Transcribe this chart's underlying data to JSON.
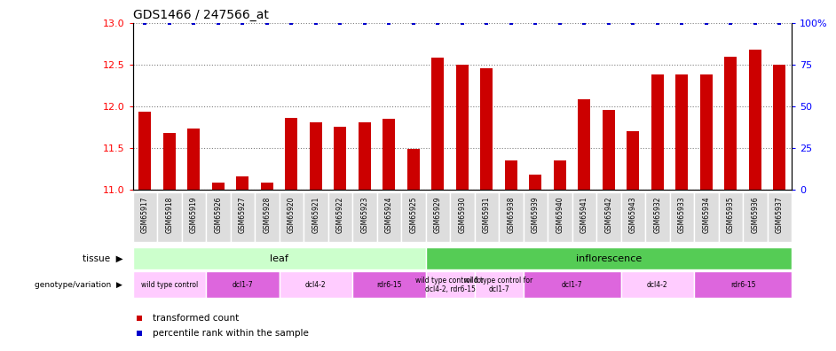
{
  "title": "GDS1466 / 247566_at",
  "samples": [
    "GSM65917",
    "GSM65918",
    "GSM65919",
    "GSM65926",
    "GSM65927",
    "GSM65928",
    "GSM65920",
    "GSM65921",
    "GSM65922",
    "GSM65923",
    "GSM65924",
    "GSM65925",
    "GSM65929",
    "GSM65930",
    "GSM65931",
    "GSM65938",
    "GSM65939",
    "GSM65940",
    "GSM65941",
    "GSM65942",
    "GSM65943",
    "GSM65932",
    "GSM65933",
    "GSM65934",
    "GSM65935",
    "GSM65936",
    "GSM65937"
  ],
  "bar_values": [
    11.93,
    11.68,
    11.73,
    11.08,
    11.15,
    11.08,
    11.86,
    11.8,
    11.75,
    11.8,
    11.85,
    11.48,
    12.58,
    12.5,
    12.46,
    11.35,
    11.18,
    11.35,
    12.08,
    11.95,
    11.7,
    12.38,
    12.38,
    12.38,
    12.6,
    12.68,
    12.5
  ],
  "percentile_values": [
    100,
    100,
    100,
    100,
    100,
    100,
    100,
    100,
    100,
    100,
    100,
    100,
    100,
    100,
    100,
    100,
    100,
    100,
    100,
    100,
    100,
    100,
    100,
    100,
    100,
    100,
    100
  ],
  "ylim": [
    11.0,
    13.0
  ],
  "y2lim": [
    0,
    100
  ],
  "yticks": [
    11.0,
    11.5,
    12.0,
    12.5,
    13.0
  ],
  "y2ticks": [
    0,
    25,
    50,
    75,
    100
  ],
  "bar_color": "#cc0000",
  "percentile_color": "#0000cc",
  "tissue_groups": [
    {
      "label": "leaf",
      "start": 0,
      "end": 11,
      "color": "#ccffcc"
    },
    {
      "label": "inflorescence",
      "start": 12,
      "end": 26,
      "color": "#55cc55"
    }
  ],
  "genotype_groups": [
    {
      "label": "wild type control",
      "start": 0,
      "end": 2,
      "color": "#ffccff"
    },
    {
      "label": "dcl1-7",
      "start": 3,
      "end": 5,
      "color": "#dd66dd"
    },
    {
      "label": "dcl4-2",
      "start": 6,
      "end": 8,
      "color": "#ffccff"
    },
    {
      "label": "rdr6-15",
      "start": 9,
      "end": 11,
      "color": "#dd66dd"
    },
    {
      "label": "wild type control for\ndcl4-2, rdr6-15",
      "start": 12,
      "end": 13,
      "color": "#ffccff"
    },
    {
      "label": "wild type control for\ndcl1-7",
      "start": 14,
      "end": 15,
      "color": "#ffccff"
    },
    {
      "label": "dcl1-7",
      "start": 16,
      "end": 19,
      "color": "#dd66dd"
    },
    {
      "label": "dcl4-2",
      "start": 20,
      "end": 22,
      "color": "#ffccff"
    },
    {
      "label": "rdr6-15",
      "start": 23,
      "end": 26,
      "color": "#dd66dd"
    }
  ],
  "legend_items": [
    {
      "label": "transformed count",
      "color": "#cc0000"
    },
    {
      "label": "percentile rank within the sample",
      "color": "#0000cc"
    }
  ],
  "label_left_tissue": "tissue",
  "label_left_geno": "genotype/variation",
  "xticklabel_bg": "#cccccc",
  "bar_width": 0.5
}
